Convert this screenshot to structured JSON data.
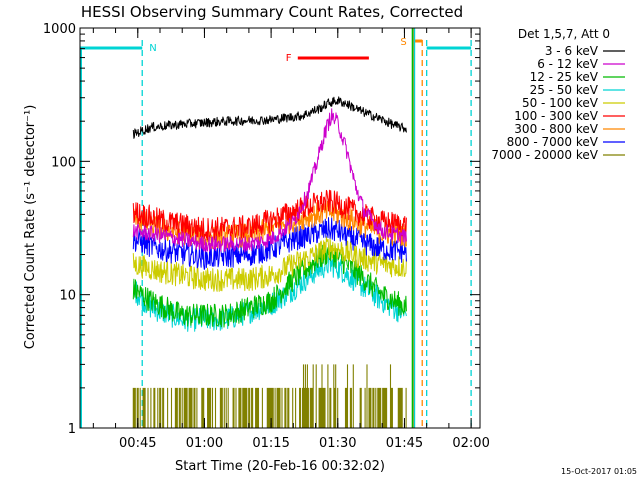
{
  "chart_data": {
    "type": "line",
    "title": "HESSI Observing Summary Count Rates, Corrected",
    "xlabel": "Start Time (20-Feb-16 00:32:02)",
    "ylabel": "Corrected Count Rate (s⁻¹ detector⁻¹)",
    "yscale": "log",
    "ylim": [
      1,
      1000
    ],
    "xlim_minutes": [
      32,
      122
    ],
    "x_ticks": [
      {
        "m": 45,
        "label": "00:45"
      },
      {
        "m": 60,
        "label": "01:00"
      },
      {
        "m": 75,
        "label": "01:15"
      },
      {
        "m": 90,
        "label": "01:30"
      },
      {
        "m": 105,
        "label": "01:45"
      },
      {
        "m": 120,
        "label": "02:00"
      }
    ],
    "y_tick_labels": [
      {
        "v": 1,
        "label": "1"
      },
      {
        "v": 10,
        "label": "10"
      },
      {
        "v": 100,
        "label": "100"
      },
      {
        "v": 1000,
        "label": "1000"
      }
    ],
    "legend_title": "Det 1,5,7, Att 0",
    "legend_position": "right",
    "series": [
      {
        "name": "3 - 6 keV",
        "color": "#000000",
        "points": [
          [
            44,
            160
          ],
          [
            48,
            180
          ],
          [
            55,
            190
          ],
          [
            65,
            200
          ],
          [
            75,
            205
          ],
          [
            82,
            220
          ],
          [
            86,
            250
          ],
          [
            88,
            275
          ],
          [
            90,
            285
          ],
          [
            92,
            270
          ],
          [
            95,
            240
          ],
          [
            100,
            205
          ],
          [
            103,
            185
          ],
          [
            105.5,
            175
          ]
        ]
      },
      {
        "name": "6 - 12 keV",
        "color": "#cc00cc",
        "points": [
          [
            44,
            30
          ],
          [
            50,
            28
          ],
          [
            60,
            24
          ],
          [
            70,
            24
          ],
          [
            75,
            26
          ],
          [
            80,
            35
          ],
          [
            83,
            55
          ],
          [
            85,
            90
          ],
          [
            87,
            160
          ],
          [
            88.5,
            220
          ],
          [
            90,
            195
          ],
          [
            92,
            120
          ],
          [
            94,
            65
          ],
          [
            96,
            42
          ],
          [
            100,
            30
          ],
          [
            105.5,
            27
          ]
        ]
      },
      {
        "name": "12 - 25 keV",
        "color": "#00bb00",
        "points": [
          [
            44,
            11
          ],
          [
            48,
            9
          ],
          [
            55,
            7
          ],
          [
            65,
            7
          ],
          [
            75,
            9
          ],
          [
            80,
            13
          ],
          [
            85,
            18
          ],
          [
            88,
            21
          ],
          [
            90,
            19
          ],
          [
            95,
            14
          ],
          [
            100,
            10
          ],
          [
            105.5,
            8
          ]
        ]
      },
      {
        "name": "25 - 50 keV",
        "color": "#00d4d4",
        "points": [
          [
            44,
            11
          ],
          [
            48,
            8
          ],
          [
            55,
            6.5
          ],
          [
            65,
            6.5
          ],
          [
            75,
            8.5
          ],
          [
            80,
            11
          ],
          [
            85,
            15
          ],
          [
            88,
            17
          ],
          [
            90,
            16
          ],
          [
            95,
            12
          ],
          [
            100,
            9
          ],
          [
            105.5,
            7
          ]
        ]
      },
      {
        "name": "50 - 100 keV",
        "color": "#cccc00",
        "points": [
          [
            44,
            17
          ],
          [
            50,
            15
          ],
          [
            60,
            13
          ],
          [
            70,
            13
          ],
          [
            75,
            14
          ],
          [
            80,
            17
          ],
          [
            85,
            20
          ],
          [
            88,
            23
          ],
          [
            90,
            22
          ],
          [
            95,
            19
          ],
          [
            100,
            17
          ],
          [
            105.5,
            16
          ]
        ]
      },
      {
        "name": "100 - 300 keV",
        "color": "#ff0000",
        "points": [
          [
            44,
            42
          ],
          [
            50,
            36
          ],
          [
            60,
            31
          ],
          [
            70,
            32
          ],
          [
            75,
            36
          ],
          [
            80,
            42
          ],
          [
            85,
            48
          ],
          [
            88,
            50
          ],
          [
            90,
            48
          ],
          [
            95,
            40
          ],
          [
            100,
            35
          ],
          [
            105.5,
            33
          ]
        ]
      },
      {
        "name": "300 - 800 keV",
        "color": "#ff8800",
        "points": [
          [
            44,
            38
          ],
          [
            50,
            31
          ],
          [
            60,
            27
          ],
          [
            70,
            28
          ],
          [
            75,
            31
          ],
          [
            80,
            36
          ],
          [
            85,
            40
          ],
          [
            88,
            42
          ],
          [
            90,
            40
          ],
          [
            95,
            34
          ],
          [
            100,
            29
          ],
          [
            105.5,
            28
          ]
        ]
      },
      {
        "name": "800 - 7000 keV",
        "color": "#0000ff",
        "points": [
          [
            44,
            26
          ],
          [
            50,
            22
          ],
          [
            60,
            19
          ],
          [
            70,
            20
          ],
          [
            75,
            22
          ],
          [
            80,
            26
          ],
          [
            85,
            29
          ],
          [
            88,
            31
          ],
          [
            90,
            30
          ],
          [
            95,
            25
          ],
          [
            100,
            22
          ],
          [
            105.5,
            21
          ]
        ]
      },
      {
        "name": "7000 - 20000 keV",
        "color": "#808000",
        "points": [
          [
            44,
            1.5
          ],
          [
            50,
            1.5
          ],
          [
            60,
            1.5
          ],
          [
            70,
            1.5
          ],
          [
            75,
            1.5
          ],
          [
            80,
            1.6
          ],
          [
            85,
            1.8
          ],
          [
            90,
            1.8
          ],
          [
            95,
            1.6
          ],
          [
            100,
            1.5
          ],
          [
            105.5,
            1.5
          ]
        ]
      }
    ],
    "markers": {
      "night_label": "N",
      "flare_label": "F",
      "saa_label": "S",
      "night_segments": [
        [
          32,
          46
        ],
        [
          110,
          120
        ]
      ],
      "night_lines": [
        46,
        110,
        120
      ],
      "night_color": "#00d4d4",
      "flare_start": 81,
      "flare_end": 97,
      "flare_color": "#ff0000",
      "saa_segment": [
        107,
        109
      ],
      "saa_line": 109,
      "saa_color": "#ff8800",
      "data_end": 106.8,
      "data_end_color": "#00bb00"
    }
  },
  "footer": {
    "date": "15-Oct-2017 01:05"
  }
}
